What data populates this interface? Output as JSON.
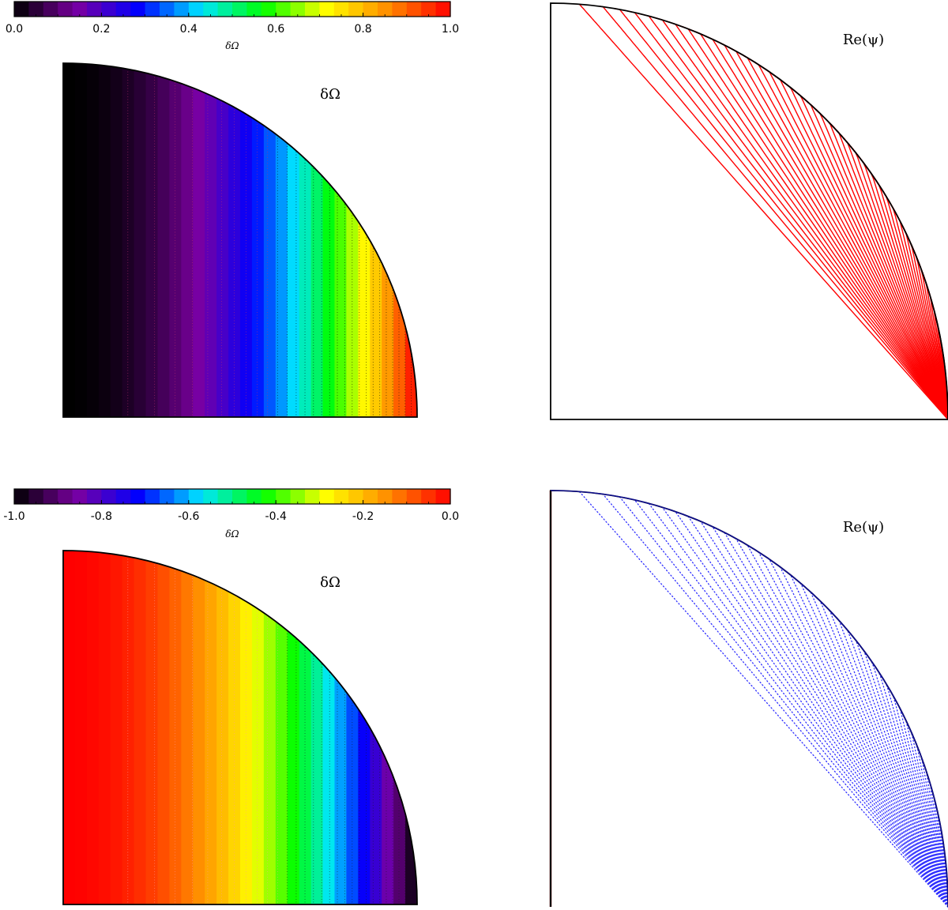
{
  "colors": {
    "colormap": [
      "#000000",
      "#7a00a0",
      "#0000ff",
      "#00e5ff",
      "#00ff00",
      "#ffff00",
      "#ff8c00",
      "#ff0000"
    ],
    "stream_top": "#ff0000",
    "stream_bottom": "#3030ff",
    "outline": "#000000"
  },
  "chart_data": [
    {
      "type": "heatmap",
      "panel": "top-left",
      "title": "δΩ",
      "colorbar": {
        "label": "δΩ",
        "range": [
          0.0,
          1.0
        ],
        "ticks": [
          "0.0",
          "0.2",
          "0.4",
          "0.6",
          "0.8",
          "1.0"
        ]
      },
      "field": "δΩ varies with cylindrical radius only, increasing from 0 at the axis to 1 at the equator",
      "levels": 30
    },
    {
      "type": "line",
      "panel": "top-right",
      "title": "Re(ψ)",
      "contours": 45,
      "line_style": "solid",
      "color": "red"
    },
    {
      "type": "heatmap",
      "panel": "bottom-left",
      "title": "δΩ",
      "colorbar": {
        "label": "δΩ",
        "range": [
          -1.0,
          0.0
        ],
        "ticks": [
          "-1.0",
          "-0.8",
          "-0.6",
          "-0.4",
          "-0.2",
          "0.0"
        ]
      },
      "field": "δΩ varies with cylindrical radius only, from 0 at the axis to -1 at the equator",
      "levels": 30
    },
    {
      "type": "line",
      "panel": "bottom-right",
      "title": "Re(ψ)",
      "contours": 45,
      "line_style": "dotted",
      "color": "blue"
    }
  ]
}
